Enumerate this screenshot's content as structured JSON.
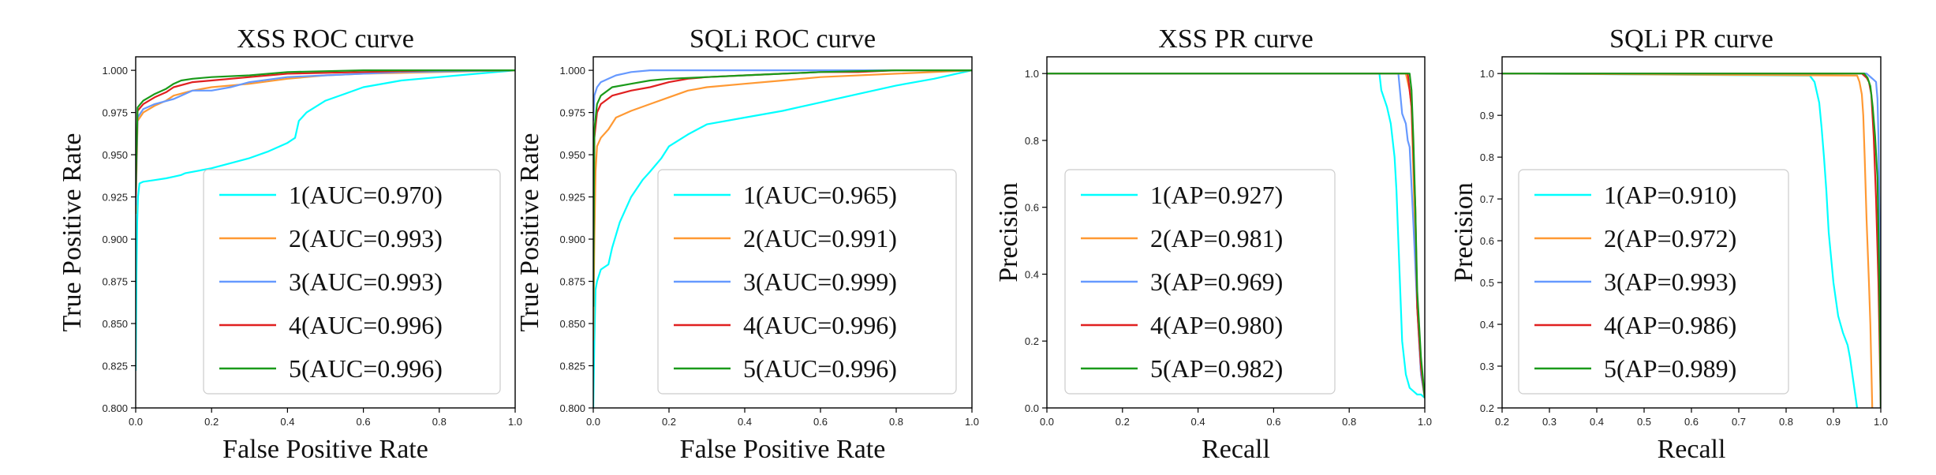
{
  "chart_data": [
    {
      "type": "line",
      "title": "XSS ROC curve",
      "xlabel": "False Positive Rate",
      "ylabel": "True Positive Rate",
      "xlim": [
        0.0,
        1.0
      ],
      "ylim": [
        0.8,
        1.008
      ],
      "xticks": [
        "0.0",
        "0.2",
        "0.4",
        "0.6",
        "0.8",
        "1.0"
      ],
      "yticks": [
        "0.800",
        "0.825",
        "0.850",
        "0.875",
        "0.900",
        "0.925",
        "0.950",
        "0.975",
        "1.000"
      ],
      "grid": false,
      "legend_position": "lower-right",
      "series": [
        {
          "name": "1(AUC=0.970)",
          "color": "#00ffff",
          "x": [
            0,
            0.002,
            0.004,
            0.006,
            0.01,
            0.02,
            0.05,
            0.08,
            0.1,
            0.12,
            0.13,
            0.2,
            0.3,
            0.35,
            0.38,
            0.4,
            0.42,
            0.43,
            0.45,
            0.5,
            0.55,
            0.6,
            0.7,
            0.8,
            0.9,
            1.0
          ],
          "y": [
            0.822,
            0.88,
            0.91,
            0.925,
            0.933,
            0.934,
            0.935,
            0.936,
            0.937,
            0.938,
            0.939,
            0.942,
            0.948,
            0.952,
            0.955,
            0.957,
            0.96,
            0.97,
            0.975,
            0.982,
            0.986,
            0.99,
            0.994,
            0.996,
            0.998,
            1.0
          ]
        },
        {
          "name": "2(AUC=0.993)",
          "color": "#ff9933",
          "x": [
            0,
            0.005,
            0.02,
            0.05,
            0.08,
            0.1,
            0.15,
            0.2,
            0.3,
            0.4,
            0.5,
            0.6,
            0.8,
            1.0
          ],
          "y": [
            0.915,
            0.97,
            0.975,
            0.979,
            0.982,
            0.985,
            0.988,
            0.99,
            0.992,
            0.995,
            0.997,
            0.998,
            0.999,
            1.0
          ]
        },
        {
          "name": "3(AUC=0.993)",
          "color": "#6699ff",
          "x": [
            0,
            0.005,
            0.02,
            0.05,
            0.1,
            0.12,
            0.15,
            0.2,
            0.25,
            0.3,
            0.4,
            0.5,
            0.7,
            1.0
          ],
          "y": [
            0.92,
            0.972,
            0.977,
            0.98,
            0.983,
            0.985,
            0.988,
            0.988,
            0.99,
            0.993,
            0.996,
            0.997,
            0.999,
            1.0
          ]
        },
        {
          "name": "4(AUC=0.996)",
          "color": "#e02020",
          "x": [
            0,
            0.005,
            0.02,
            0.05,
            0.08,
            0.1,
            0.15,
            0.2,
            0.3,
            0.4,
            0.6,
            0.8,
            1.0
          ],
          "y": [
            0.925,
            0.976,
            0.98,
            0.984,
            0.987,
            0.99,
            0.993,
            0.994,
            0.996,
            0.998,
            0.999,
            1.0,
            1.0
          ]
        },
        {
          "name": "5(AUC=0.996)",
          "color": "#1a9a1a",
          "x": [
            0,
            0.005,
            0.02,
            0.05,
            0.08,
            0.1,
            0.12,
            0.15,
            0.2,
            0.3,
            0.4,
            0.6,
            1.0
          ],
          "y": [
            0.93,
            0.978,
            0.982,
            0.986,
            0.989,
            0.992,
            0.994,
            0.995,
            0.996,
            0.997,
            0.999,
            1.0,
            1.0
          ]
        }
      ]
    },
    {
      "type": "line",
      "title": "SQLi ROC curve",
      "xlabel": "False Positive Rate",
      "ylabel": "True Positive Rate",
      "xlim": [
        0.0,
        1.0
      ],
      "ylim": [
        0.8,
        1.008
      ],
      "xticks": [
        "0.0",
        "0.2",
        "0.4",
        "0.6",
        "0.8",
        "1.0"
      ],
      "yticks": [
        "0.800",
        "0.825",
        "0.850",
        "0.875",
        "0.900",
        "0.925",
        "0.950",
        "0.975",
        "1.000"
      ],
      "grid": false,
      "legend_position": "lower-right",
      "series": [
        {
          "name": "1(AUC=0.965)",
          "color": "#00ffff",
          "x": [
            0,
            0.003,
            0.006,
            0.01,
            0.02,
            0.04,
            0.05,
            0.07,
            0.1,
            0.13,
            0.15,
            0.18,
            0.2,
            0.25,
            0.3,
            0.4,
            0.5,
            0.6,
            0.7,
            0.8,
            0.9,
            1.0
          ],
          "y": [
            0.8,
            0.84,
            0.87,
            0.875,
            0.882,
            0.885,
            0.895,
            0.91,
            0.925,
            0.935,
            0.94,
            0.948,
            0.955,
            0.962,
            0.968,
            0.972,
            0.976,
            0.981,
            0.986,
            0.991,
            0.995,
            1.0
          ]
        },
        {
          "name": "2(AUC=0.991)",
          "color": "#ff9933",
          "x": [
            0,
            0.003,
            0.006,
            0.01,
            0.02,
            0.04,
            0.06,
            0.1,
            0.15,
            0.2,
            0.25,
            0.3,
            0.4,
            0.5,
            0.6,
            0.8,
            1.0
          ],
          "y": [
            0.84,
            0.9,
            0.94,
            0.955,
            0.96,
            0.965,
            0.972,
            0.976,
            0.98,
            0.984,
            0.988,
            0.99,
            0.992,
            0.994,
            0.996,
            0.998,
            1.0
          ]
        },
        {
          "name": "3(AUC=0.999)",
          "color": "#6699ff",
          "x": [
            0,
            0.003,
            0.01,
            0.02,
            0.04,
            0.06,
            0.08,
            0.1,
            0.15,
            0.2,
            0.5,
            1.0
          ],
          "y": [
            0.97,
            0.985,
            0.99,
            0.993,
            0.995,
            0.997,
            0.998,
            0.999,
            1.0,
            1.0,
            1.0,
            1.0
          ]
        },
        {
          "name": "4(AUC=0.996)",
          "color": "#e02020",
          "x": [
            0,
            0.003,
            0.01,
            0.02,
            0.05,
            0.1,
            0.15,
            0.2,
            0.25,
            0.3,
            0.4,
            0.5,
            0.6,
            0.7,
            0.8,
            1.0
          ],
          "y": [
            0.86,
            0.96,
            0.975,
            0.98,
            0.985,
            0.988,
            0.99,
            0.993,
            0.995,
            0.996,
            0.997,
            0.998,
            0.999,
            0.999,
            1.0,
            1.0
          ]
        },
        {
          "name": "5(AUC=0.996)",
          "color": "#1a9a1a",
          "x": [
            0,
            0.003,
            0.01,
            0.02,
            0.05,
            0.1,
            0.15,
            0.2,
            0.3,
            0.4,
            0.5,
            0.6,
            0.8,
            1.0
          ],
          "y": [
            0.86,
            0.965,
            0.98,
            0.985,
            0.99,
            0.992,
            0.994,
            0.995,
            0.996,
            0.997,
            0.998,
            0.999,
            1.0,
            1.0
          ]
        }
      ]
    },
    {
      "type": "line",
      "title": "XSS PR curve",
      "xlabel": "Recall",
      "ylabel": "Precision",
      "xlim": [
        0.0,
        1.0
      ],
      "ylim": [
        0.0,
        1.05
      ],
      "xticks": [
        "0.0",
        "0.2",
        "0.4",
        "0.6",
        "0.8",
        "1.0"
      ],
      "yticks": [
        "0.0",
        "0.2",
        "0.4",
        "0.6",
        "0.8",
        "1.0"
      ],
      "grid": false,
      "legend_position": "lower-center",
      "series": [
        {
          "name": "1(AP=0.927)",
          "color": "#00ffff",
          "x": [
            0,
            0.88,
            0.885,
            0.9,
            0.91,
            0.92,
            0.925,
            0.93,
            0.935,
            0.94,
            0.95,
            0.96,
            0.97,
            0.98,
            0.99,
            1.0
          ],
          "y": [
            1.0,
            1.0,
            0.95,
            0.9,
            0.85,
            0.75,
            0.65,
            0.5,
            0.35,
            0.2,
            0.1,
            0.06,
            0.05,
            0.04,
            0.04,
            0.03
          ]
        },
        {
          "name": "2(AP=0.981)",
          "color": "#ff9933",
          "x": [
            0,
            0.95,
            0.96,
            0.965,
            0.97,
            0.975,
            0.98,
            0.99,
            1.0
          ],
          "y": [
            1.0,
            1.0,
            0.95,
            0.9,
            0.7,
            0.5,
            0.3,
            0.1,
            0.03
          ]
        },
        {
          "name": "3(AP=0.969)",
          "color": "#6699ff",
          "x": [
            0,
            0.93,
            0.94,
            0.95,
            0.955,
            0.96,
            0.97,
            0.98,
            0.99,
            1.0
          ],
          "y": [
            1.0,
            1.0,
            0.88,
            0.85,
            0.8,
            0.78,
            0.55,
            0.3,
            0.1,
            0.03
          ]
        },
        {
          "name": "4(AP=0.980)",
          "color": "#e02020",
          "x": [
            0,
            0.955,
            0.96,
            0.965,
            0.97,
            0.975,
            0.98,
            0.99,
            1.0
          ],
          "y": [
            1.0,
            1.0,
            0.95,
            0.9,
            0.75,
            0.6,
            0.3,
            0.12,
            0.03
          ]
        },
        {
          "name": "5(AP=0.982)",
          "color": "#1a9a1a",
          "x": [
            0,
            0.96,
            0.965,
            0.97,
            0.975,
            0.98,
            0.99,
            1.0
          ],
          "y": [
            1.0,
            1.0,
            0.95,
            0.8,
            0.6,
            0.35,
            0.15,
            0.03
          ]
        }
      ]
    },
    {
      "type": "line",
      "title": "SQLi PR curve",
      "xlabel": "Recall",
      "ylabel": "Precision",
      "xlim": [
        0.2,
        1.0
      ],
      "ylim": [
        0.2,
        1.04
      ],
      "xticks": [
        "0.2",
        "0.3",
        "0.4",
        "0.5",
        "0.6",
        "0.7",
        "0.8",
        "0.9",
        "1.0"
      ],
      "yticks": [
        "0.2",
        "0.3",
        "0.4",
        "0.5",
        "0.6",
        "0.7",
        "0.8",
        "0.9",
        "1.0"
      ],
      "grid": false,
      "legend_position": "lower-center",
      "series": [
        {
          "name": "1(AP=0.910)",
          "color": "#00ffff",
          "x": [
            0.2,
            0.85,
            0.86,
            0.87,
            0.875,
            0.88,
            0.885,
            0.89,
            0.9,
            0.91,
            0.915,
            0.92,
            0.93,
            0.935,
            0.94,
            0.945,
            0.95
          ],
          "y": [
            1.0,
            0.995,
            0.98,
            0.93,
            0.87,
            0.8,
            0.72,
            0.62,
            0.5,
            0.42,
            0.4,
            0.38,
            0.35,
            0.32,
            0.28,
            0.24,
            0.2
          ]
        },
        {
          "name": "2(AP=0.972)",
          "color": "#ff9933",
          "x": [
            0.2,
            0.95,
            0.955,
            0.96,
            0.963,
            0.966,
            0.97,
            0.975,
            0.978,
            0.98,
            0.982
          ],
          "y": [
            1.0,
            0.995,
            0.98,
            0.95,
            0.9,
            0.8,
            0.65,
            0.5,
            0.4,
            0.3,
            0.2
          ]
        },
        {
          "name": "3(AP=0.993)",
          "color": "#6699ff",
          "x": [
            0.2,
            0.97,
            0.975,
            0.98,
            0.985,
            0.99,
            0.993,
            0.995,
            0.998,
            1.0
          ],
          "y": [
            1.0,
            1.0,
            0.995,
            0.99,
            0.985,
            0.98,
            0.94,
            0.85,
            0.6,
            0.2
          ]
        },
        {
          "name": "4(AP=0.986)",
          "color": "#e02020",
          "x": [
            0.2,
            0.96,
            0.97,
            0.975,
            0.98,
            0.985,
            0.99,
            0.995,
            1.0
          ],
          "y": [
            1.0,
            1.0,
            0.99,
            0.98,
            0.95,
            0.85,
            0.7,
            0.5,
            0.2
          ]
        },
        {
          "name": "5(AP=0.989)",
          "color": "#1a9a1a",
          "x": [
            0.2,
            0.965,
            0.972,
            0.978,
            0.983,
            0.988,
            0.993,
            0.997,
            1.0
          ],
          "y": [
            1.0,
            1.0,
            0.99,
            0.97,
            0.92,
            0.85,
            0.75,
            0.5,
            0.2
          ]
        }
      ]
    }
  ]
}
